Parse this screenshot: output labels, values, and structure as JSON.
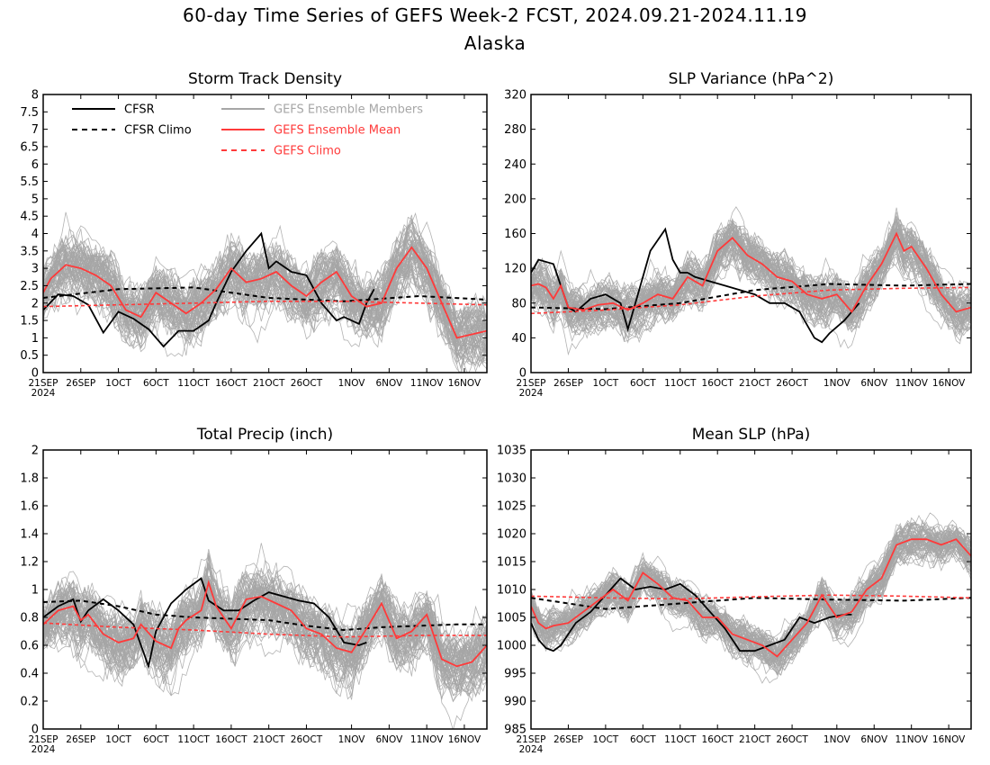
{
  "title": "60-day Time Series of GEFS Week-2 FCST, 2024.09.21-2024.11.19",
  "subtitle": "Alaska",
  "colors": {
    "cfsr": "#000000",
    "ensemble_members": "#a6a6a6",
    "ensemble_mean": "#ff3a3a",
    "gefs_climo": "#ff3a3a",
    "cfsr_climo": "#000000",
    "axes": "#000000",
    "background": "#ffffff"
  },
  "legend": [
    {
      "label": "CFSR",
      "style": "solid",
      "color": "#000000"
    },
    {
      "label": "CFSR Climo",
      "style": "dashed",
      "color": "#000000"
    },
    {
      "label": "GEFS Ensemble Members",
      "style": "solid",
      "color": "#a6a6a6"
    },
    {
      "label": "GEFS Ensemble Mean",
      "style": "solid",
      "color": "#ff3a3a"
    },
    {
      "label": "GEFS Climo",
      "style": "dashed",
      "color": "#ff3a3a"
    }
  ],
  "x_tick_labels": [
    "21SEP",
    "26SEP",
    "1OCT",
    "6OCT",
    "11OCT",
    "16OCT",
    "21OCT",
    "26OCT",
    "1NOV",
    "6NOV",
    "11NOV",
    "16NOV"
  ],
  "x_tick_days": [
    0,
    5,
    10,
    15,
    20,
    25,
    30,
    35,
    41,
    46,
    51,
    56
  ],
  "x_year_label": "2024",
  "x_range_days": [
    0,
    59
  ],
  "chart_data": [
    {
      "type": "line",
      "title": "Storm Track Density",
      "ylim": [
        0,
        8
      ],
      "yticks": [
        "0",
        "0.5",
        "1",
        "1.5",
        "2",
        "2.5",
        "3",
        "3.5",
        "4",
        "4.5",
        "5",
        "5.5",
        "6",
        "6.5",
        "7",
        "7.5",
        "8"
      ],
      "ytick_values": [
        0,
        0.5,
        1,
        1.5,
        2,
        2.5,
        3,
        3.5,
        4,
        4.5,
        5,
        5.5,
        6,
        6.5,
        7,
        7.5,
        8
      ],
      "show_legend": true,
      "spread_base": 1.6,
      "spread_scale": 0.55,
      "series": [
        {
          "name": "CFSR",
          "x": [
            0,
            2,
            4,
            6,
            8,
            10,
            12,
            14,
            16,
            18,
            20,
            22,
            23,
            25,
            27,
            29,
            30,
            31,
            33,
            35,
            37,
            39,
            40,
            42,
            43,
            44
          ],
          "values": [
            1.8,
            2.25,
            2.2,
            1.95,
            1.15,
            1.75,
            1.55,
            1.25,
            0.75,
            1.2,
            1.2,
            1.5,
            2.0,
            2.9,
            3.5,
            4.0,
            3.0,
            3.2,
            2.9,
            2.8,
            2.0,
            1.5,
            1.6,
            1.4,
            2.0,
            2.4
          ]
        },
        {
          "name": "CFSR Climo",
          "x": [
            0,
            10,
            20,
            30,
            40,
            50,
            59
          ],
          "values": [
            2.15,
            2.4,
            2.45,
            2.15,
            2.05,
            2.2,
            2.1
          ]
        },
        {
          "name": "GEFS Ensemble Mean",
          "x": [
            0,
            1,
            3,
            5,
            7,
            9,
            11,
            13,
            15,
            17,
            19,
            21,
            23,
            25,
            27,
            29,
            31,
            33,
            35,
            37,
            39,
            41,
            43,
            45,
            47,
            49,
            51,
            53,
            55,
            57,
            59
          ],
          "values": [
            2.3,
            2.7,
            3.1,
            3.0,
            2.8,
            2.5,
            1.8,
            1.6,
            2.3,
            2.0,
            1.7,
            2.0,
            2.4,
            3.0,
            2.6,
            2.7,
            2.9,
            2.5,
            2.2,
            2.6,
            2.9,
            2.2,
            1.9,
            2.0,
            3.0,
            3.6,
            3.0,
            2.0,
            1.0,
            1.1,
            1.2
          ]
        },
        {
          "name": "GEFS Climo",
          "x": [
            0,
            10,
            20,
            30,
            40,
            50,
            59
          ],
          "values": [
            1.9,
            1.95,
            2.0,
            2.05,
            2.05,
            2.0,
            1.95
          ]
        }
      ]
    },
    {
      "type": "line",
      "title": "SLP Variance (hPa^2)",
      "ylim": [
        0,
        320
      ],
      "yticks": [
        "0",
        "40",
        "80",
        "120",
        "160",
        "200",
        "240",
        "280",
        "320"
      ],
      "ytick_values": [
        0,
        40,
        80,
        120,
        160,
        200,
        240,
        280,
        320
      ],
      "show_legend": false,
      "spread_base": 45,
      "spread_scale": 0.6,
      "series": [
        {
          "name": "CFSR",
          "x": [
            0,
            1,
            3,
            5,
            6,
            8,
            10,
            12,
            13,
            14,
            16,
            18,
            19,
            20,
            21,
            22,
            24,
            26,
            28,
            30,
            32,
            34,
            36,
            38,
            39,
            40,
            42,
            43,
            44
          ],
          "values": [
            115,
            130,
            125,
            75,
            70,
            85,
            90,
            80,
            50,
            80,
            140,
            165,
            130,
            115,
            115,
            110,
            105,
            100,
            95,
            90,
            80,
            80,
            70,
            40,
            35,
            45,
            60,
            70,
            80
          ]
        },
        {
          "name": "CFSR Climo",
          "x": [
            0,
            10,
            20,
            30,
            40,
            50,
            59
          ],
          "values": [
            75,
            73,
            80,
            95,
            102,
            100,
            102
          ]
        },
        {
          "name": "GEFS Ensemble Mean",
          "x": [
            0,
            1,
            2,
            3,
            4,
            5,
            7,
            9,
            11,
            13,
            15,
            17,
            19,
            21,
            23,
            25,
            27,
            29,
            31,
            33,
            35,
            37,
            39,
            41,
            43,
            45,
            47,
            49,
            50,
            51,
            53,
            55,
            57,
            59
          ],
          "values": [
            100,
            102,
            98,
            85,
            100,
            75,
            72,
            78,
            80,
            72,
            80,
            90,
            85,
            110,
            100,
            140,
            155,
            135,
            125,
            110,
            105,
            90,
            85,
            90,
            70,
            100,
            125,
            160,
            140,
            145,
            120,
            90,
            70,
            75
          ]
        },
        {
          "name": "GEFS Climo",
          "x": [
            0,
            10,
            20,
            30,
            40,
            50,
            59
          ],
          "values": [
            68,
            72,
            78,
            88,
            95,
            97,
            98
          ]
        }
      ]
    },
    {
      "type": "line",
      "title": "Total Precip (inch)",
      "ylim": [
        0,
        2
      ],
      "yticks": [
        "0",
        "0.2",
        "0.4",
        "0.6",
        "0.8",
        "1",
        "1.2",
        "1.4",
        "1.6",
        "1.8",
        "2"
      ],
      "ytick_values": [
        0,
        0.2,
        0.4,
        0.6,
        0.8,
        1.0,
        1.2,
        1.4,
        1.6,
        1.8,
        2.0
      ],
      "show_legend": false,
      "spread_base": 0.38,
      "spread_scale": 0.6,
      "series": [
        {
          "name": "CFSR",
          "x": [
            0,
            2,
            4,
            5,
            6,
            8,
            10,
            12,
            14,
            15,
            17,
            19,
            21,
            22,
            24,
            26,
            28,
            30,
            32,
            34,
            36,
            38,
            40,
            42,
            43
          ],
          "values": [
            0.8,
            0.88,
            0.93,
            0.77,
            0.85,
            0.93,
            0.85,
            0.75,
            0.45,
            0.7,
            0.9,
            1.0,
            1.08,
            0.92,
            0.85,
            0.85,
            0.92,
            0.98,
            0.95,
            0.92,
            0.9,
            0.8,
            0.62,
            0.6,
            0.62
          ]
        },
        {
          "name": "CFSR Climo",
          "x": [
            0,
            5,
            10,
            15,
            20,
            25,
            30,
            35,
            40,
            45,
            50,
            55,
            59
          ],
          "values": [
            0.91,
            0.92,
            0.88,
            0.82,
            0.8,
            0.79,
            0.78,
            0.74,
            0.71,
            0.73,
            0.74,
            0.75,
            0.75
          ]
        },
        {
          "name": "GEFS Ensemble Mean",
          "x": [
            0,
            2,
            4,
            5,
            6,
            8,
            10,
            12,
            13,
            15,
            17,
            18,
            19,
            21,
            22,
            23,
            25,
            27,
            29,
            31,
            33,
            35,
            37,
            39,
            41,
            43,
            45,
            47,
            49,
            51,
            53,
            55,
            57,
            59
          ],
          "values": [
            0.75,
            0.85,
            0.88,
            0.78,
            0.82,
            0.68,
            0.62,
            0.65,
            0.75,
            0.63,
            0.58,
            0.72,
            0.78,
            0.85,
            1.05,
            0.88,
            0.72,
            0.93,
            0.95,
            0.9,
            0.85,
            0.72,
            0.68,
            0.58,
            0.55,
            0.72,
            0.9,
            0.65,
            0.7,
            0.82,
            0.5,
            0.45,
            0.48,
            0.6
          ]
        },
        {
          "name": "GEFS Climo",
          "x": [
            0,
            10,
            20,
            30,
            40,
            50,
            59
          ],
          "values": [
            0.76,
            0.73,
            0.71,
            0.68,
            0.66,
            0.67,
            0.67
          ]
        }
      ]
    },
    {
      "type": "line",
      "title": "Mean SLP (hPa)",
      "ylim": [
        985,
        1035
      ],
      "yticks": [
        "985",
        "990",
        "995",
        "1000",
        "1005",
        "1010",
        "1015",
        "1020",
        "1025",
        "1030",
        "1035"
      ],
      "ytick_values": [
        985,
        990,
        995,
        1000,
        1005,
        1010,
        1015,
        1020,
        1025,
        1030,
        1035
      ],
      "show_legend": false,
      "spread_base": 6,
      "spread_scale": 0.55,
      "series": [
        {
          "name": "CFSR",
          "x": [
            0,
            1,
            2,
            3,
            4,
            6,
            8,
            10,
            12,
            14,
            16,
            18,
            20,
            22,
            24,
            26,
            28,
            30,
            32,
            34,
            36,
            38,
            40,
            42,
            43
          ],
          "values": [
            1004,
            1001,
            999.5,
            999,
            1000,
            1004,
            1006,
            1009,
            1012,
            1010,
            1010.5,
            1010,
            1011,
            1009,
            1006,
            1003,
            999,
            999,
            1000,
            1001,
            1005,
            1004,
            1005,
            1005.5,
            1005.5
          ]
        },
        {
          "name": "CFSR Climo",
          "x": [
            0,
            10,
            20,
            30,
            40,
            50,
            59
          ],
          "values": [
            1008.5,
            1006.5,
            1007.5,
            1008.5,
            1008.2,
            1008,
            1008.5
          ]
        },
        {
          "name": "GEFS Ensemble Mean",
          "x": [
            0,
            1,
            2,
            3,
            5,
            7,
            9,
            11,
            13,
            15,
            17,
            19,
            21,
            23,
            25,
            27,
            29,
            31,
            33,
            35,
            37,
            39,
            41,
            43,
            45,
            47,
            49,
            51,
            53,
            55,
            57,
            59
          ],
          "values": [
            1007,
            1004,
            1003,
            1003.5,
            1004,
            1006,
            1008,
            1010,
            1008,
            1013,
            1011,
            1008.5,
            1008,
            1005,
            1005,
            1002,
            1001,
            1000,
            998,
            1001,
            1004,
            1009,
            1005,
            1006,
            1010,
            1012,
            1018,
            1019,
            1019,
            1018,
            1019,
            1016
          ]
        },
        {
          "name": "GEFS Climo",
          "x": [
            0,
            10,
            20,
            30,
            40,
            50,
            59
          ],
          "values": [
            1008.8,
            1008.5,
            1008.3,
            1008.7,
            1009,
            1008.8,
            1008.5
          ]
        }
      ]
    }
  ]
}
